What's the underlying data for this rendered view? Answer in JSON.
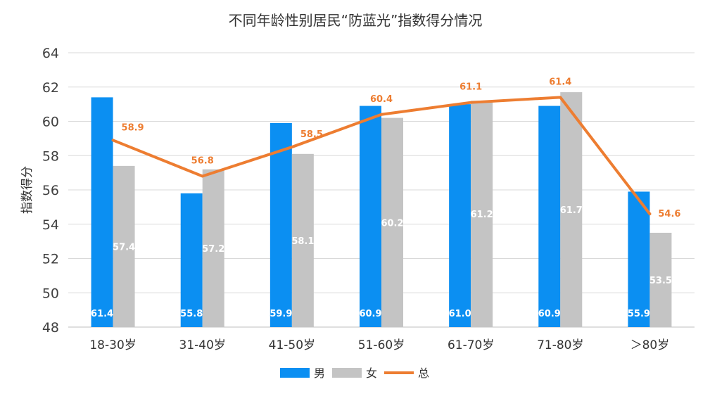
{
  "chart_data": {
    "type": "bar",
    "title": "不同年龄性别居民“防蓝光”指数得分情况",
    "ylabel": "指数得分",
    "xlabel": "",
    "ylim": [
      48,
      64
    ],
    "yticks": [
      "48",
      "50",
      "52",
      "54",
      "56",
      "58",
      "60",
      "62",
      "64"
    ],
    "grid": true,
    "legend_position": "bottom",
    "categories": [
      "18-30岁",
      "31-40岁",
      "41-50岁",
      "51-60岁",
      "61-70岁",
      "71-80岁",
      "＞80岁"
    ],
    "series": [
      {
        "name": "男",
        "kind": "bar",
        "color": "#0b8ff2",
        "values": [
          61.4,
          55.8,
          59.9,
          60.9,
          61.0,
          60.9,
          55.9
        ],
        "labels": [
          "61.4",
          "55.8",
          "59.9",
          "60.9",
          "61.0",
          "60.9",
          "55.9"
        ]
      },
      {
        "name": "女",
        "kind": "bar",
        "color": "#c4c4c4",
        "values": [
          57.4,
          57.2,
          58.1,
          60.2,
          61.2,
          61.7,
          53.5
        ],
        "labels": [
          "57.4",
          "57.2",
          "58.1",
          "60.2",
          "61.2",
          "61.7",
          "53.5"
        ]
      },
      {
        "name": "总",
        "kind": "line",
        "color": "#ed7d31",
        "values": [
          58.9,
          56.8,
          58.5,
          60.4,
          61.1,
          61.4,
          54.6
        ],
        "labels": [
          "58.9",
          "56.8",
          "58.5",
          "60.4",
          "61.1",
          "61.4",
          "54.6"
        ]
      }
    ]
  }
}
